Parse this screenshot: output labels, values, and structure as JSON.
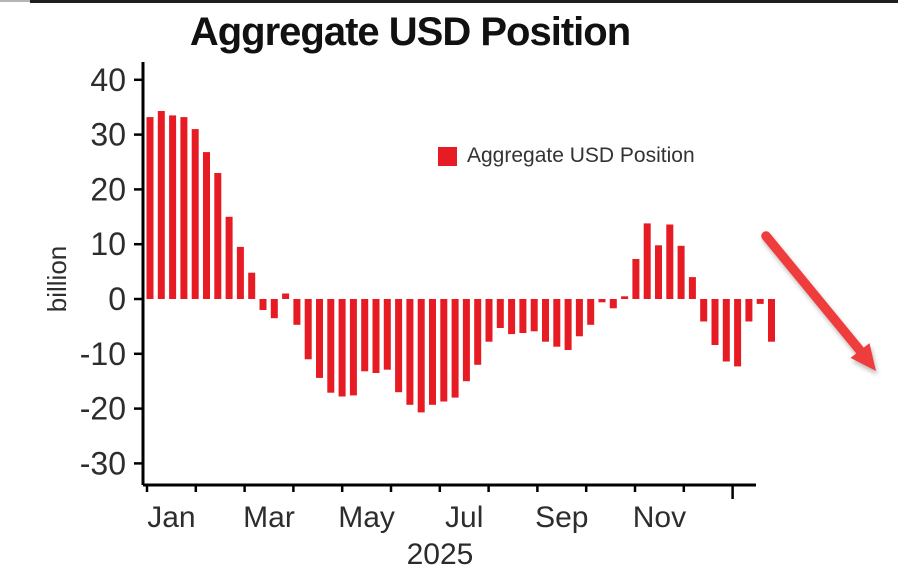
{
  "page": {
    "title": "Aggregate USD Position"
  },
  "chart_data": {
    "type": "bar",
    "title": "Aggregate USD Position",
    "ylabel": "billion",
    "xlabel": "2025",
    "x_unit": "weekly",
    "x_tick_labels": [
      "Jan",
      "Mar",
      "May",
      "Jul",
      "Sep",
      "Nov"
    ],
    "y_ticks": [
      40,
      30,
      20,
      10,
      0,
      -10,
      -20,
      -30
    ],
    "ylim": [
      -33,
      43
    ],
    "grid": false,
    "legend_position": "upper-center",
    "series": [
      {
        "name": "Aggregate USD Position",
        "color": "#e61b23",
        "values": [
          33.2,
          34.3,
          33.5,
          33.2,
          31.0,
          26.8,
          23.0,
          15.0,
          9.5,
          4.8,
          -2.0,
          -3.5,
          1.0,
          -4.7,
          -11.0,
          -14.4,
          -17.1,
          -17.8,
          -17.6,
          -13.2,
          -13.5,
          -12.9,
          -17.0,
          -19.3,
          -20.7,
          -19.3,
          -18.7,
          -18.0,
          -15.0,
          -12.0,
          -7.8,
          -5.3,
          -6.4,
          -6.2,
          -5.9,
          -7.8,
          -8.7,
          -9.3,
          -6.8,
          -4.7,
          -0.6,
          -1.7,
          0.5,
          7.3,
          13.8,
          9.8,
          13.6,
          9.7,
          4.0,
          -4.1,
          -8.4,
          -11.4,
          -12.3,
          -4.1,
          -0.9,
          -7.8
        ]
      }
    ],
    "annotations": [
      {
        "type": "arrow",
        "direction": "down-right",
        "color": "#ef3e3c",
        "meaning": "declining trend"
      }
    ]
  },
  "colors": {
    "bar": "#e61b23",
    "arrow": "#ef3e3c",
    "axis": "#000000",
    "text": "#2d2d2d"
  }
}
